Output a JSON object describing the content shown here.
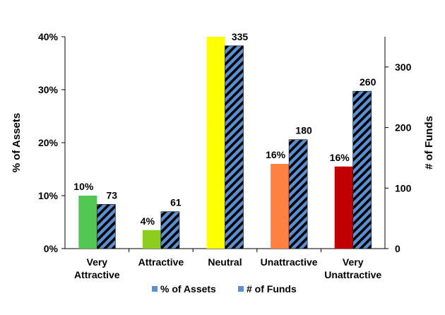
{
  "chart_data": {
    "type": "bar",
    "categories": [
      "Very\nAttractive",
      "Attractive",
      "Neutral",
      "Unattractive",
      "Very\nUnattractive"
    ],
    "series": [
      {
        "name": "% of Assets",
        "axis": "left",
        "values": [
          10,
          3.5,
          40,
          16,
          15.5
        ],
        "data_labels": [
          "10%",
          "4%",
          "",
          "16%",
          "16%"
        ],
        "bar_colors": [
          "#52c653",
          "#8ccd1e",
          "#ffff00",
          "#ff8040",
          "#c00000"
        ]
      },
      {
        "name": "# of Funds",
        "axis": "right",
        "values": [
          73,
          61,
          335,
          180,
          260
        ],
        "data_labels": [
          "73",
          "61",
          "335",
          "180",
          "260"
        ],
        "pattern": "diagonal-stripes",
        "colors": [
          "#5b8fd4",
          "#000000"
        ]
      }
    ],
    "ylabel": "% of Assets",
    "ylabel_right": "# of Funds",
    "ylim": [
      0,
      40
    ],
    "ylim_right": [
      0,
      350
    ],
    "yticks": [
      "0%",
      "10%",
      "20%",
      "30%",
      "40%"
    ],
    "yticks_right": [
      "0",
      "100",
      "200",
      "300"
    ],
    "legend": {
      "placement": "bottom",
      "items": [
        "% of Assets",
        "# of Funds"
      ],
      "swatch_colors": [
        "#5b8fd4",
        "#5b8fd4"
      ]
    }
  }
}
